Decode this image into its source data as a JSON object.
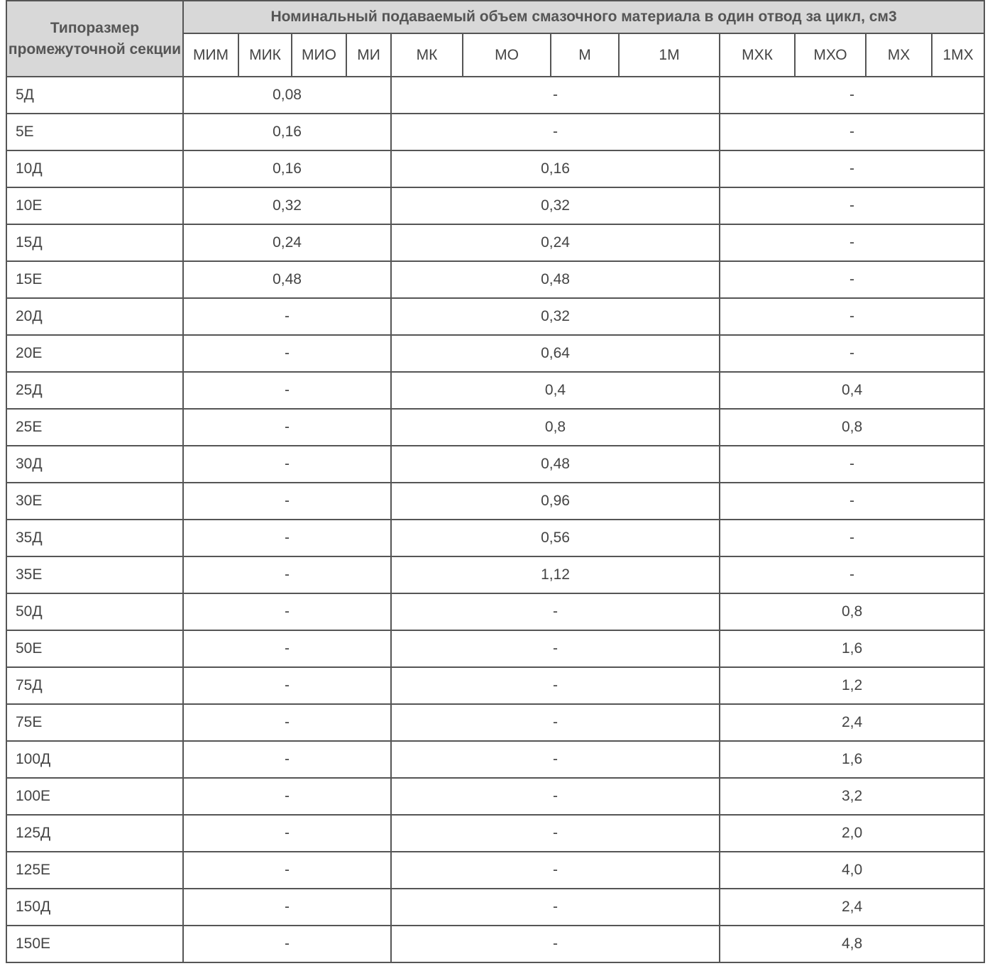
{
  "header": {
    "first_col": "Типоразмер промежуточной секции",
    "group_title": "Номинальный подаваемый объем смазочного материала в один отвод за цикл, см3",
    "subcolumns": [
      "МИМ",
      "МИК",
      "МИО",
      "МИ",
      "МК",
      "МО",
      "М",
      "1М",
      "МХК",
      "МХО",
      "МХ",
      "1МХ"
    ]
  },
  "rows": [
    [
      "5Д",
      "0,08",
      "-",
      "-"
    ],
    [
      "5Е",
      "0,16",
      "-",
      "-"
    ],
    [
      "10Д",
      "0,16",
      "0,16",
      "-"
    ],
    [
      "10Е",
      "0,32",
      "0,32",
      "-"
    ],
    [
      "15Д",
      "0,24",
      "0,24",
      "-"
    ],
    [
      "15Е",
      "0,48",
      "0,48",
      "-"
    ],
    [
      "20Д",
      "-",
      "0,32",
      "-"
    ],
    [
      "20Е",
      "-",
      "0,64",
      "-"
    ],
    [
      "25Д",
      "-",
      "0,4",
      "0,4"
    ],
    [
      "25Е",
      "-",
      "0,8",
      "0,8"
    ],
    [
      "30Д",
      "-",
      "0,48",
      "-"
    ],
    [
      "30Е",
      "-",
      "0,96",
      "-"
    ],
    [
      "35Д",
      "-",
      "0,56",
      "-"
    ],
    [
      "35Е",
      "-",
      "1,12",
      "-"
    ],
    [
      "50Д",
      "-",
      "-",
      "0,8"
    ],
    [
      "50Е",
      "-",
      "-",
      "1,6"
    ],
    [
      "75Д",
      "-",
      "-",
      "1,2"
    ],
    [
      "75Е",
      "-",
      "-",
      "2,4"
    ],
    [
      "100Д",
      "-",
      "-",
      "1,6"
    ],
    [
      "100Е",
      "-",
      "-",
      "3,2"
    ],
    [
      "125Д",
      "-",
      "-",
      "2,0"
    ],
    [
      "125Е",
      "-",
      "-",
      "4,0"
    ],
    [
      "150Д",
      "-",
      "-",
      "2,4"
    ],
    [
      "150Е",
      "-",
      "-",
      "4,8"
    ]
  ]
}
